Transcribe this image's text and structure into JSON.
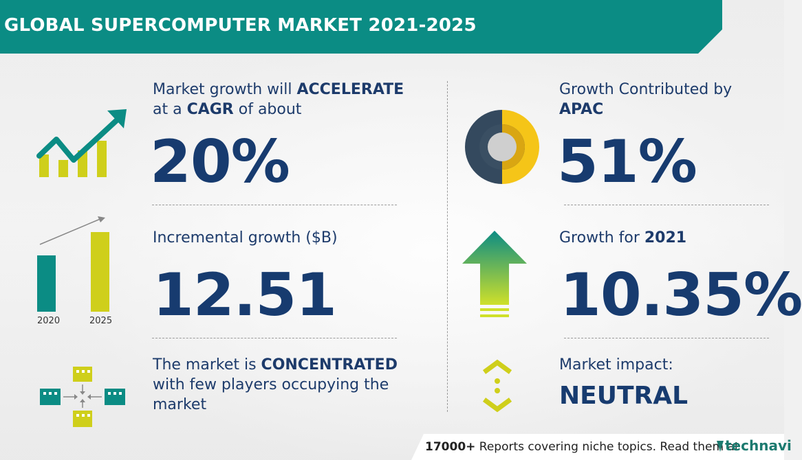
{
  "title": "GLOBAL SUPERCOMPUTER MARKET 2021-2025",
  "colors": {
    "teal": "#0b8c84",
    "navy": "#173b6f",
    "yellow": "#cfcf1b",
    "gold": "#f5c518",
    "slate": "#34495e"
  },
  "left": {
    "cagr": {
      "text_pre": "Market growth will ",
      "text_bold1": "ACCELERATE",
      "text_mid": "at a ",
      "text_bold2": "CAGR",
      "text_post": " of about",
      "value": "20%",
      "icon": "growth-chart-icon"
    },
    "incremental": {
      "label": "Incremental growth ($B)",
      "value": "12.51",
      "year_start": "2020",
      "year_end": "2025",
      "icon": "bar-comparison-icon"
    },
    "market": {
      "text_pre": "The market is ",
      "text_bold": "CONCENTRATED",
      "text_line2": "with few players occupying the",
      "text_line3": "market",
      "icon": "buildings-network-icon"
    }
  },
  "right": {
    "region": {
      "label": "Growth Contributed by",
      "region": "APAC",
      "value": "51%",
      "icon": "donut-icon"
    },
    "yoy": {
      "label_pre": "Growth for ",
      "year": "2021",
      "value": "10.35%",
      "icon": "up-arrow-icon"
    },
    "impact": {
      "label": "Market impact:",
      "value": "NEUTRAL",
      "icon": "neutral-chevrons-icon"
    }
  },
  "footer": {
    "count": "17000+",
    "text": " Reports covering niche topics. Read them at",
    "brand": "technavi"
  }
}
